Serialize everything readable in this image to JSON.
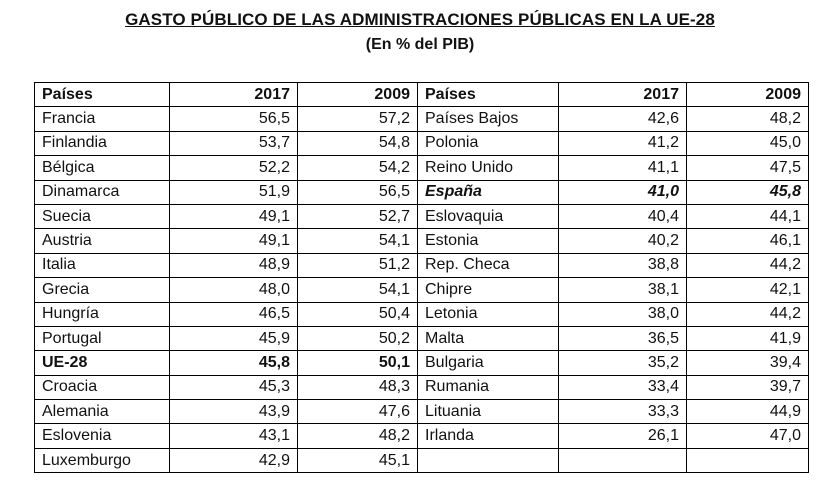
{
  "title": "GASTO PÚBLICO DE LAS ADMINISTRACIONES PÚBLICAS EN LA UE-28",
  "subtitle": "(En % del PIB)",
  "headers": {
    "left": {
      "country": "Países",
      "y2017": "2017",
      "y2009": "2009"
    },
    "right": {
      "country": "Países",
      "y2017": "2017",
      "y2009": "2009"
    }
  },
  "left_rows": [
    {
      "country": "Francia",
      "y2017": "56,5",
      "y2009": "57,2"
    },
    {
      "country": "Finlandia",
      "y2017": "53,7",
      "y2009": "54,8"
    },
    {
      "country": "Bélgica",
      "y2017": "52,2",
      "y2009": "54,2"
    },
    {
      "country": "Dinamarca",
      "y2017": "51,9",
      "y2009": "56,5"
    },
    {
      "country": "Suecia",
      "y2017": "49,1",
      "y2009": "52,7"
    },
    {
      "country": "Austria",
      "y2017": "49,1",
      "y2009": "54,1"
    },
    {
      "country": "Italia",
      "y2017": "48,9",
      "y2009": "51,2"
    },
    {
      "country": "Grecia",
      "y2017": "48,0",
      "y2009": "54,1"
    },
    {
      "country": "Hungría",
      "y2017": "46,5",
      "y2009": "50,4"
    },
    {
      "country": "Portugal",
      "y2017": "45,9",
      "y2009": "50,2"
    },
    {
      "country": "UE-28",
      "y2017": "45,8",
      "y2009": "50,1"
    },
    {
      "country": "Croacia",
      "y2017": "45,3",
      "y2009": "48,3"
    },
    {
      "country": "Alemania",
      "y2017": "43,9",
      "y2009": "47,6"
    },
    {
      "country": "Eslovenia",
      "y2017": "43,1",
      "y2009": "48,2"
    },
    {
      "country": "Luxemburgo",
      "y2017": "42,9",
      "y2009": "45,1"
    }
  ],
  "right_rows": [
    {
      "country": "Países Bajos",
      "y2017": "42,6",
      "y2009": "48,2"
    },
    {
      "country": "Polonia",
      "y2017": "41,2",
      "y2009": "45,0"
    },
    {
      "country": "Reino Unido",
      "y2017": "41,1",
      "y2009": "47,5"
    },
    {
      "country": "España",
      "y2017": "41,0",
      "y2009": "45,8"
    },
    {
      "country": "Eslovaquia",
      "y2017": "40,4",
      "y2009": "44,1"
    },
    {
      "country": "Estonia",
      "y2017": "40,2",
      "y2009": "46,1"
    },
    {
      "country": "Rep. Checa",
      "y2017": "38,8",
      "y2009": "44,2"
    },
    {
      "country": "Chipre",
      "y2017": "38,1",
      "y2009": "42,1"
    },
    {
      "country": "Letonia",
      "y2017": "38,0",
      "y2009": "44,2"
    },
    {
      "country": "Malta",
      "y2017": "36,5",
      "y2009": "41,9"
    },
    {
      "country": "Bulgaria",
      "y2017": "35,2",
      "y2009": "39,4"
    },
    {
      "country": "Rumania",
      "y2017": "33,4",
      "y2009": "39,7"
    },
    {
      "country": "Lituania",
      "y2017": "33,3",
      "y2009": "44,9"
    },
    {
      "country": "Irlanda",
      "y2017": "26,1",
      "y2009": "47,0"
    }
  ]
}
